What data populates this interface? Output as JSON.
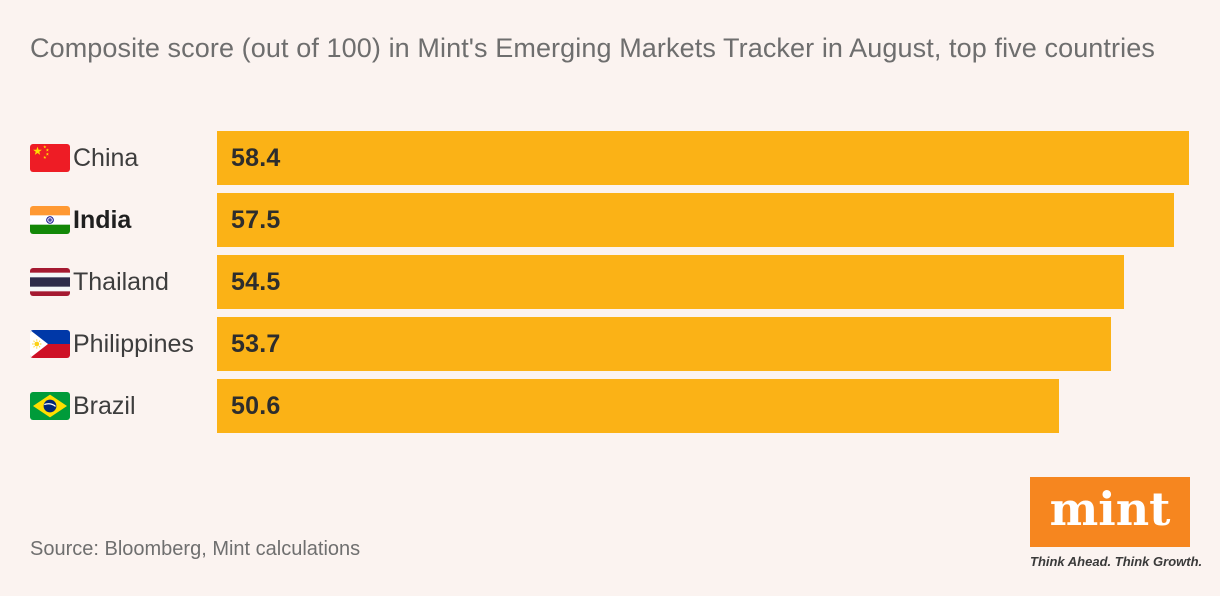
{
  "title": "Composite score (out of 100) in Mint's Emerging Markets Tracker in August, top five countries",
  "source": "Source: Bloomberg, Mint calculations",
  "logo": {
    "text": "mint",
    "tagline": "Think Ahead. Think Growth."
  },
  "colors": {
    "background": "#FBF3F0",
    "bar": "#FBB216",
    "logo_orange": "#F6861F",
    "title_text": "#6E6E6E",
    "label_text": "#3D3D3D",
    "value_text": "#2D2D2D"
  },
  "chart_data": {
    "type": "bar",
    "orientation": "horizontal",
    "title": "Composite score (out of 100) in Mint's Emerging Markets Tracker in August, top five countries",
    "xlabel": "",
    "ylabel": "",
    "xlim": [
      0,
      58.4
    ],
    "grid": false,
    "legend": false,
    "value_labels": "inside-left",
    "categories": [
      "China",
      "India",
      "Thailand",
      "Philippines",
      "Brazil"
    ],
    "values": [
      58.4,
      57.5,
      54.5,
      53.7,
      50.6
    ],
    "rows": [
      {
        "country": "China",
        "flag_icon": "china-flag-icon",
        "value": 58.4,
        "value_label": "58.4",
        "emphasis": false
      },
      {
        "country": "India",
        "flag_icon": "india-flag-icon",
        "value": 57.5,
        "value_label": "57.5",
        "emphasis": true
      },
      {
        "country": "Thailand",
        "flag_icon": "thailand-flag-icon",
        "value": 54.5,
        "value_label": "54.5",
        "emphasis": false
      },
      {
        "country": "Philippines",
        "flag_icon": "philippines-flag-icon",
        "value": 53.7,
        "value_label": "53.7",
        "emphasis": false
      },
      {
        "country": "Brazil",
        "flag_icon": "brazil-flag-icon",
        "value": 50.6,
        "value_label": "50.6",
        "emphasis": false
      }
    ]
  }
}
